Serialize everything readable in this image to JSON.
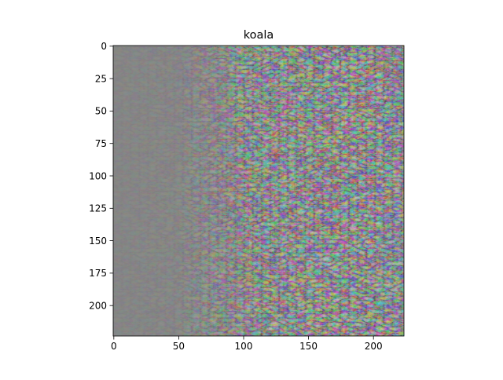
{
  "figure": {
    "title": "koala",
    "x_tick_labels": [
      "0",
      "50",
      "100",
      "150",
      "200"
    ],
    "y_tick_labels": [
      "0",
      "25",
      "50",
      "75",
      "100",
      "125",
      "150",
      "175",
      "200"
    ],
    "x_tick_values": [
      0,
      50,
      100,
      150,
      200
    ],
    "y_tick_values": [
      0,
      25,
      50,
      75,
      100,
      125,
      150,
      175,
      200
    ],
    "image_extent": {
      "x": [
        -0.5,
        223.5
      ],
      "y": [
        223.5,
        -0.5
      ]
    },
    "background_color": "#ffffff",
    "image_base_color": "#808080"
  }
}
